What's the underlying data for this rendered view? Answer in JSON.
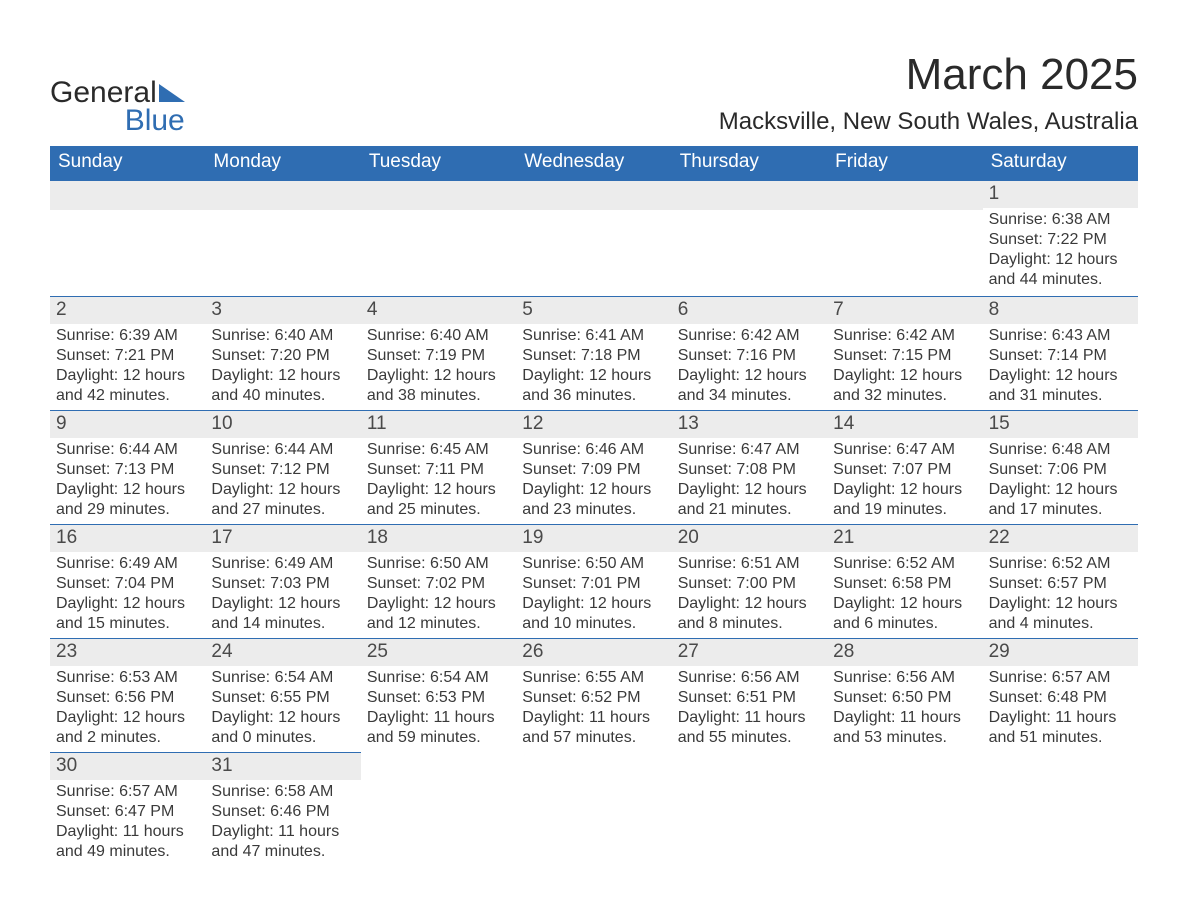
{
  "brand": {
    "name1": "General",
    "name2": "Blue"
  },
  "title": "March 2025",
  "location": "Macksville, New South Wales, Australia",
  "colors": {
    "header_bg": "#2f6db2",
    "header_text": "#ffffff",
    "daynum_bg": "#ececec",
    "border": "#2f6db2",
    "text": "#3a3a3a",
    "background": "#ffffff"
  },
  "typography": {
    "title_fontsize": 44,
    "location_fontsize": 24,
    "dow_fontsize": 19,
    "daynum_fontsize": 19,
    "body_fontsize": 16
  },
  "calendar": {
    "start_day_index": 6,
    "days_of_week": [
      "Sunday",
      "Monday",
      "Tuesday",
      "Wednesday",
      "Thursday",
      "Friday",
      "Saturday"
    ],
    "days": [
      {
        "n": 1,
        "sunrise": "6:38 AM",
        "sunset": "7:22 PM",
        "daylight": "12 hours and 44 minutes."
      },
      {
        "n": 2,
        "sunrise": "6:39 AM",
        "sunset": "7:21 PM",
        "daylight": "12 hours and 42 minutes."
      },
      {
        "n": 3,
        "sunrise": "6:40 AM",
        "sunset": "7:20 PM",
        "daylight": "12 hours and 40 minutes."
      },
      {
        "n": 4,
        "sunrise": "6:40 AM",
        "sunset": "7:19 PM",
        "daylight": "12 hours and 38 minutes."
      },
      {
        "n": 5,
        "sunrise": "6:41 AM",
        "sunset": "7:18 PM",
        "daylight": "12 hours and 36 minutes."
      },
      {
        "n": 6,
        "sunrise": "6:42 AM",
        "sunset": "7:16 PM",
        "daylight": "12 hours and 34 minutes."
      },
      {
        "n": 7,
        "sunrise": "6:42 AM",
        "sunset": "7:15 PM",
        "daylight": "12 hours and 32 minutes."
      },
      {
        "n": 8,
        "sunrise": "6:43 AM",
        "sunset": "7:14 PM",
        "daylight": "12 hours and 31 minutes."
      },
      {
        "n": 9,
        "sunrise": "6:44 AM",
        "sunset": "7:13 PM",
        "daylight": "12 hours and 29 minutes."
      },
      {
        "n": 10,
        "sunrise": "6:44 AM",
        "sunset": "7:12 PM",
        "daylight": "12 hours and 27 minutes."
      },
      {
        "n": 11,
        "sunrise": "6:45 AM",
        "sunset": "7:11 PM",
        "daylight": "12 hours and 25 minutes."
      },
      {
        "n": 12,
        "sunrise": "6:46 AM",
        "sunset": "7:09 PM",
        "daylight": "12 hours and 23 minutes."
      },
      {
        "n": 13,
        "sunrise": "6:47 AM",
        "sunset": "7:08 PM",
        "daylight": "12 hours and 21 minutes."
      },
      {
        "n": 14,
        "sunrise": "6:47 AM",
        "sunset": "7:07 PM",
        "daylight": "12 hours and 19 minutes."
      },
      {
        "n": 15,
        "sunrise": "6:48 AM",
        "sunset": "7:06 PM",
        "daylight": "12 hours and 17 minutes."
      },
      {
        "n": 16,
        "sunrise": "6:49 AM",
        "sunset": "7:04 PM",
        "daylight": "12 hours and 15 minutes."
      },
      {
        "n": 17,
        "sunrise": "6:49 AM",
        "sunset": "7:03 PM",
        "daylight": "12 hours and 14 minutes."
      },
      {
        "n": 18,
        "sunrise": "6:50 AM",
        "sunset": "7:02 PM",
        "daylight": "12 hours and 12 minutes."
      },
      {
        "n": 19,
        "sunrise": "6:50 AM",
        "sunset": "7:01 PM",
        "daylight": "12 hours and 10 minutes."
      },
      {
        "n": 20,
        "sunrise": "6:51 AM",
        "sunset": "7:00 PM",
        "daylight": "12 hours and 8 minutes."
      },
      {
        "n": 21,
        "sunrise": "6:52 AM",
        "sunset": "6:58 PM",
        "daylight": "12 hours and 6 minutes."
      },
      {
        "n": 22,
        "sunrise": "6:52 AM",
        "sunset": "6:57 PM",
        "daylight": "12 hours and 4 minutes."
      },
      {
        "n": 23,
        "sunrise": "6:53 AM",
        "sunset": "6:56 PM",
        "daylight": "12 hours and 2 minutes."
      },
      {
        "n": 24,
        "sunrise": "6:54 AM",
        "sunset": "6:55 PM",
        "daylight": "12 hours and 0 minutes."
      },
      {
        "n": 25,
        "sunrise": "6:54 AM",
        "sunset": "6:53 PM",
        "daylight": "11 hours and 59 minutes."
      },
      {
        "n": 26,
        "sunrise": "6:55 AM",
        "sunset": "6:52 PM",
        "daylight": "11 hours and 57 minutes."
      },
      {
        "n": 27,
        "sunrise": "6:56 AM",
        "sunset": "6:51 PM",
        "daylight": "11 hours and 55 minutes."
      },
      {
        "n": 28,
        "sunrise": "6:56 AM",
        "sunset": "6:50 PM",
        "daylight": "11 hours and 53 minutes."
      },
      {
        "n": 29,
        "sunrise": "6:57 AM",
        "sunset": "6:48 PM",
        "daylight": "11 hours and 51 minutes."
      },
      {
        "n": 30,
        "sunrise": "6:57 AM",
        "sunset": "6:47 PM",
        "daylight": "11 hours and 49 minutes."
      },
      {
        "n": 31,
        "sunrise": "6:58 AM",
        "sunset": "6:46 PM",
        "daylight": "11 hours and 47 minutes."
      }
    ]
  },
  "labels": {
    "sunrise": "Sunrise:",
    "sunset": "Sunset:",
    "daylight": "Daylight:"
  }
}
